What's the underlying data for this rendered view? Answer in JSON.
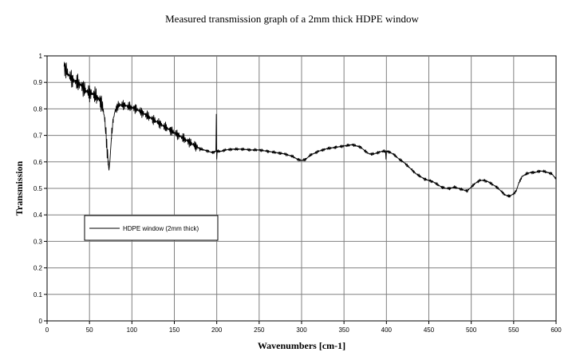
{
  "chart_data": {
    "type": "line",
    "title": "Measured transmission graph of a 2mm thick HDPE window",
    "xlabel": "Wavenumbers [cm-1]",
    "ylabel": "Transmission",
    "xlim": [
      0,
      600
    ],
    "ylim": [
      0,
      1
    ],
    "x_ticks": [
      "0",
      "50",
      "100",
      "150",
      "200",
      "250",
      "300",
      "350",
      "400",
      "450",
      "500",
      "550",
      "600"
    ],
    "y_ticks": [
      "0",
      "0.1",
      "0.2",
      "0.3",
      "0.4",
      "0.5",
      "0.6",
      "0.7",
      "0.8",
      "0.9",
      "1"
    ],
    "grid": true,
    "legend_position": "left-middle",
    "series": [
      {
        "name": "HDPE window (2mm thick)",
        "color": "#000000",
        "x": [
          20,
          25,
          30,
          35,
          40,
          45,
          50,
          55,
          60,
          63,
          66,
          68,
          70,
          72,
          73,
          74,
          76,
          78,
          80,
          83,
          86,
          90,
          95,
          100,
          105,
          110,
          115,
          120,
          125,
          130,
          135,
          140,
          145,
          150,
          155,
          160,
          165,
          170,
          175,
          180,
          185,
          190,
          195,
          199,
          199.5,
          200,
          200.5,
          201,
          205,
          210,
          220,
          230,
          240,
          250,
          260,
          270,
          280,
          290,
          295,
          300,
          305,
          310,
          320,
          330,
          340,
          350,
          360,
          365,
          370,
          375,
          380,
          385,
          390,
          395,
          399,
          399.5,
          400,
          401,
          405,
          410,
          415,
          420,
          425,
          430,
          435,
          440,
          445,
          450,
          455,
          460,
          465,
          470,
          475,
          480,
          485,
          490,
          495,
          500,
          505,
          510,
          515,
          520,
          525,
          530,
          535,
          540,
          545,
          550,
          553,
          556,
          560,
          565,
          570,
          575,
          580,
          585,
          590,
          595,
          600
        ],
        "y": [
          0.96,
          0.93,
          0.91,
          0.9,
          0.89,
          0.87,
          0.86,
          0.855,
          0.84,
          0.83,
          0.8,
          0.76,
          0.68,
          0.6,
          0.57,
          0.6,
          0.7,
          0.76,
          0.79,
          0.81,
          0.815,
          0.815,
          0.81,
          0.805,
          0.8,
          0.79,
          0.78,
          0.77,
          0.76,
          0.75,
          0.74,
          0.73,
          0.72,
          0.71,
          0.7,
          0.69,
          0.68,
          0.67,
          0.66,
          0.65,
          0.645,
          0.64,
          0.635,
          0.64,
          0.78,
          0.61,
          0.64,
          0.64,
          0.64,
          0.645,
          0.648,
          0.648,
          0.645,
          0.645,
          0.64,
          0.635,
          0.63,
          0.62,
          0.61,
          0.605,
          0.61,
          0.625,
          0.64,
          0.65,
          0.655,
          0.66,
          0.665,
          0.66,
          0.655,
          0.64,
          0.63,
          0.63,
          0.635,
          0.64,
          0.64,
          0.61,
          0.64,
          0.64,
          0.635,
          0.625,
          0.61,
          0.6,
          0.585,
          0.57,
          0.555,
          0.545,
          0.535,
          0.53,
          0.525,
          0.515,
          0.505,
          0.5,
          0.5,
          0.505,
          0.5,
          0.495,
          0.49,
          0.505,
          0.52,
          0.53,
          0.53,
          0.525,
          0.515,
          0.505,
          0.49,
          0.475,
          0.47,
          0.48,
          0.49,
          0.52,
          0.545,
          0.555,
          0.56,
          0.56,
          0.565,
          0.565,
          0.56,
          0.555,
          0.535
        ],
        "noise": [
          {
            "from": 20,
            "to": 73,
            "amplitude": 0.035
          },
          {
            "from": 76,
            "to": 180,
            "amplitude": 0.02
          },
          {
            "from": 180,
            "to": 600,
            "amplitude": 0.006
          }
        ]
      }
    ]
  }
}
